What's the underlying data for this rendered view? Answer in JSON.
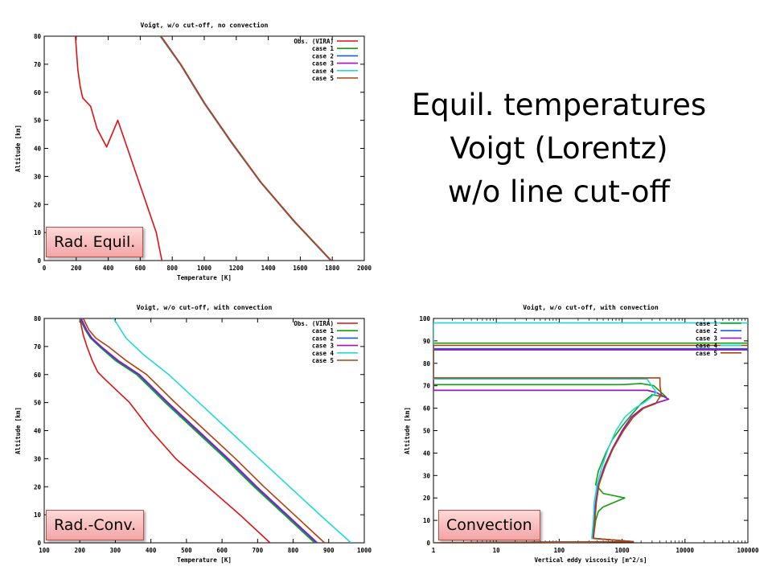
{
  "heading": {
    "line1": "Equil. temperatures",
    "line2": "Voigt (Lorentz)",
    "line3": "w/o line cut-off"
  },
  "labels": {
    "tl": "Rad. Equil.",
    "bl": "Rad.-Conv.",
    "br": "Convection"
  },
  "colors": {
    "Obs. (VIRA)": "#e01010",
    "case 1": "#10a010",
    "case 2": "#1060e0",
    "case 3": "#a010c0",
    "case 4": "#20d8d8",
    "case 5": "#b04010"
  },
  "chart_data": [
    {
      "id": "tl",
      "type": "line",
      "title": "Voigt, w/o cut-off, no convection",
      "xlabel": "Temperature [K]",
      "ylabel": "Altitude [km]",
      "xlim": [
        0,
        2000
      ],
      "ylim": [
        0,
        80
      ],
      "xticks": [
        "0",
        "200",
        "400",
        "600",
        "800",
        "1000",
        "1200",
        "1400",
        "1600",
        "1800",
        "2000"
      ],
      "yticks": [
        "0",
        "10",
        "20",
        "30",
        "40",
        "50",
        "60",
        "70",
        "80"
      ],
      "legend_position": "top-right",
      "series": [
        {
          "name": "Obs. (VIRA)",
          "x": [
            735,
            700,
            640,
            580,
            520,
            460,
            390,
            330,
            290,
            240,
            225,
            210,
            205,
            200,
            195
          ],
          "y": [
            0,
            10,
            20,
            30,
            40,
            50,
            40.5,
            47,
            55,
            58,
            62,
            68,
            72,
            76,
            80
          ]
        },
        {
          "name": "case 1",
          "x": [
            1790,
            1560,
            1350,
            1170,
            1000,
            850,
            725
          ],
          "y": [
            0,
            14,
            28,
            42,
            56,
            70,
            80
          ]
        },
        {
          "name": "case 2",
          "x": [
            1792,
            1562,
            1352,
            1172,
            1002,
            852,
            728
          ],
          "y": [
            0,
            14,
            28,
            42,
            56,
            70,
            80
          ]
        },
        {
          "name": "case 3",
          "x": [
            1791,
            1561,
            1351,
            1171,
            1001,
            851,
            727
          ],
          "y": [
            0,
            14,
            28,
            42,
            56,
            70,
            80
          ]
        },
        {
          "name": "case 4",
          "x": [
            1793,
            1563,
            1353,
            1173,
            1003,
            853,
            729
          ],
          "y": [
            0,
            14,
            28,
            42,
            56,
            70,
            80
          ]
        },
        {
          "name": "case 5",
          "x": [
            1794,
            1564,
            1354,
            1174,
            1004,
            854,
            730
          ],
          "y": [
            0,
            14,
            28,
            42,
            56,
            70,
            80
          ]
        }
      ]
    },
    {
      "id": "bl",
      "type": "line",
      "title": "Voigt, w/o cut-off, with convection",
      "xlabel": "Temperature [K]",
      "ylabel": "Altitude [km]",
      "xlim": [
        100,
        1000
      ],
      "ylim": [
        0,
        80
      ],
      "xticks": [
        "100",
        "200",
        "300",
        "400",
        "500",
        "600",
        "700",
        "800",
        "900",
        "1000"
      ],
      "yticks": [
        "0",
        "10",
        "20",
        "30",
        "40",
        "50",
        "60",
        "70",
        "80"
      ],
      "legend_position": "top-right",
      "series": [
        {
          "name": "Obs. (VIRA)",
          "x": [
            735,
            650,
            560,
            470,
            400,
            340,
            290,
            265,
            250,
            235,
            220,
            210,
            205,
            200
          ],
          "y": [
            0,
            10,
            20,
            30,
            40,
            50,
            56,
            59,
            61,
            65,
            70,
            74,
            77,
            80
          ]
        },
        {
          "name": "case 1",
          "x": [
            860,
            775,
            690,
            610,
            525,
            440,
            360,
            300,
            255,
            230,
            215,
            200
          ],
          "y": [
            0,
            10,
            20,
            30,
            40,
            50,
            60,
            65,
            70,
            73,
            76,
            80
          ]
        },
        {
          "name": "case 2",
          "x": [
            865,
            780,
            695,
            615,
            530,
            445,
            365,
            305,
            258,
            232,
            217,
            202
          ],
          "y": [
            0,
            10,
            20,
            30,
            40,
            50,
            60,
            65,
            70,
            73,
            76,
            80
          ]
        },
        {
          "name": "case 3",
          "x": [
            868,
            783,
            698,
            618,
            533,
            448,
            368,
            308,
            260,
            234,
            219,
            204
          ],
          "y": [
            0,
            10,
            20,
            30,
            40,
            50,
            60,
            65,
            70,
            73,
            76,
            80
          ]
        },
        {
          "name": "case 4",
          "x": [
            963,
            875,
            790,
            705,
            620,
            535,
            450,
            380,
            330,
            310,
            295
          ],
          "y": [
            0,
            10,
            20,
            30,
            40,
            50,
            60,
            67,
            73,
            77,
            80
          ]
        },
        {
          "name": "case 5",
          "x": [
            888,
            803,
            718,
            638,
            553,
            468,
            388,
            330,
            280,
            245,
            225,
            210
          ],
          "y": [
            0,
            10,
            20,
            30,
            40,
            50,
            60,
            65,
            70,
            73,
            76,
            80
          ]
        }
      ]
    },
    {
      "id": "br",
      "type": "line",
      "title": "Voigt, w/o cut-off, with convection",
      "xlabel": "Vertical eddy viscosity [m^2/s]",
      "ylabel": "Altitude [km]",
      "xscale": "log",
      "xlim": [
        1,
        100000
      ],
      "ylim": [
        0,
        100
      ],
      "xticks": [
        "1",
        "10",
        "100",
        "1000",
        "10000",
        "100000"
      ],
      "yticks": [
        "0",
        "10",
        "20",
        "30",
        "40",
        "50",
        "60",
        "70",
        "80",
        "90",
        "100"
      ],
      "legend_position": "top-right",
      "series": [
        {
          "name": "case 1",
          "x": [
            1,
            1500,
            350,
            380,
            420,
            500,
            1100,
            500,
            380,
            420,
            550,
            700,
            1000,
            1400,
            2000,
            3000,
            5000,
            3200,
            2000,
            1000,
            1,
            1,
            100000
          ],
          "y": [
            0,
            0.5,
            2,
            10,
            14,
            16,
            20,
            22,
            26,
            32,
            40,
            46,
            52,
            57,
            62,
            66,
            65,
            70,
            71,
            70.5,
            70.5,
            89,
            89
          ]
        },
        {
          "name": "case 2",
          "x": [
            1,
            1500,
            340,
            360,
            380,
            420,
            520,
            700,
            1000,
            1400,
            2100,
            3200,
            5500,
            3500,
            2500,
            1,
            1,
            100000
          ],
          "y": [
            0,
            0.5,
            2,
            10,
            18,
            26,
            34,
            42,
            50,
            56,
            60,
            62,
            64,
            67,
            68,
            68,
            86.5,
            86.5
          ]
        },
        {
          "name": "case 3",
          "x": [
            1,
            1500,
            345,
            365,
            385,
            425,
            525,
            705,
            1005,
            1405,
            2105,
            3205,
            5505,
            3505,
            2505,
            1,
            1,
            100000
          ],
          "y": [
            0,
            0.5,
            2,
            10,
            18,
            26,
            34,
            42,
            50,
            56,
            60,
            62,
            64,
            67,
            68,
            68,
            86,
            86
          ]
        },
        {
          "name": "case 4",
          "x": [
            1,
            1500,
            330,
            350,
            360,
            400,
            480,
            600,
            800,
            1100,
            1600,
            2400,
            3500,
            2500,
            1,
            1,
            100000
          ],
          "y": [
            0,
            0.5,
            2,
            10,
            18,
            26,
            34,
            42,
            50,
            56,
            60,
            63,
            67,
            73,
            73,
            98,
            98
          ]
        },
        {
          "name": "case 5",
          "x": [
            1,
            1500,
            350,
            370,
            390,
            430,
            540,
            720,
            1050,
            1500,
            2200,
            3400,
            4200,
            4000,
            4000,
            1,
            1,
            100000
          ],
          "y": [
            0,
            0.5,
            2,
            10,
            18,
            26,
            34,
            42,
            50,
            56,
            60,
            62,
            66,
            70,
            73.5,
            73.5,
            88,
            88
          ]
        }
      ]
    }
  ]
}
